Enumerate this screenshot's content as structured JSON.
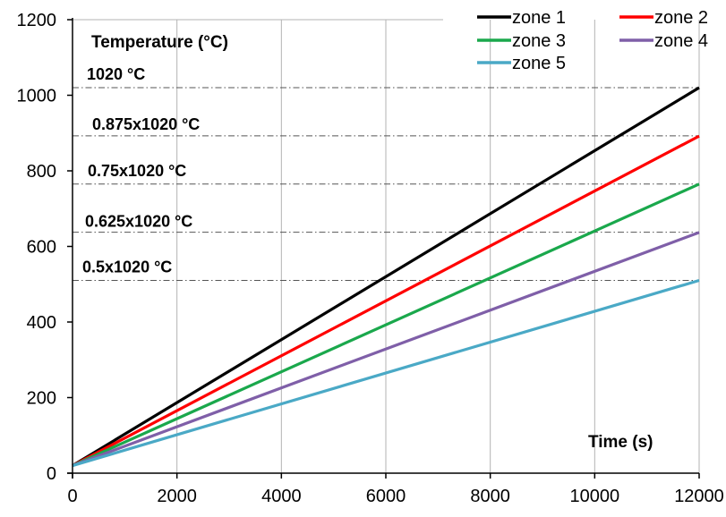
{
  "chart_data": {
    "type": "line",
    "ylabel": "Temperature  (°C)",
    "xlabel": "Time (s)",
    "xlim": [
      0,
      12000
    ],
    "ylim": [
      0,
      1200
    ],
    "x_ticks": [
      0,
      2000,
      4000,
      6000,
      8000,
      10000,
      12000
    ],
    "y_ticks": [
      0,
      200,
      400,
      600,
      800,
      1000,
      1200
    ],
    "grid": true,
    "legend_position": "top-right",
    "series": [
      {
        "name": "zone 1",
        "color": "#000000",
        "x": [
          0,
          12000
        ],
        "y": [
          20,
          1020
        ]
      },
      {
        "name": "zone 2",
        "color": "#ff0000",
        "x": [
          0,
          12000
        ],
        "y": [
          20,
          892
        ]
      },
      {
        "name": "zone 3",
        "color": "#1aa84c",
        "x": [
          0,
          12000
        ],
        "y": [
          20,
          765
        ]
      },
      {
        "name": "zone 4",
        "color": "#7f5fa8",
        "x": [
          0,
          12000
        ],
        "y": [
          20,
          637
        ]
      },
      {
        "name": "zone 5",
        "color": "#4aa9c6",
        "x": [
          0,
          12000
        ],
        "y": [
          20,
          510
        ]
      }
    ],
    "reference_lines": [
      {
        "label": "1020 °C",
        "y": 1020
      },
      {
        "label": "0.875x1020  °C",
        "y": 892.5
      },
      {
        "label": "0.75x1020  °C",
        "y": 765
      },
      {
        "label": "0.625x1020  °C",
        "y": 637.5
      },
      {
        "label": "0.5x1020 °C",
        "y": 510
      }
    ]
  }
}
